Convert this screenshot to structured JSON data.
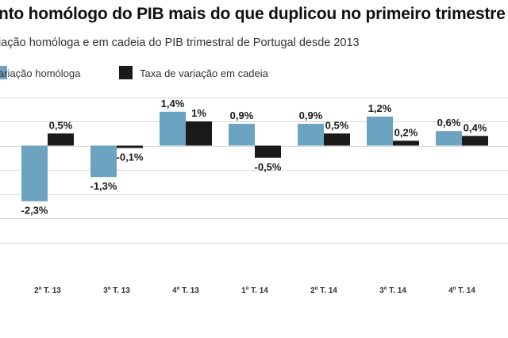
{
  "chart_data": {
    "type": "bar",
    "title": "nto homólogo do PIB mais do que duplicou no primeiro trimestre",
    "subtitle": "iação homóloga e em cadeia do PIB trimestral de Portugal desde 2013",
    "categories": [
      "2º T. 13",
      "3º T. 13",
      "4º T. 13",
      "1º T. 14",
      "2º T. 14",
      "3º T. 14",
      "4º T. 14"
    ],
    "series": [
      {
        "name": "ariação homóloga",
        "color": "#6ba3c0",
        "values": [
          -2.3,
          -1.3,
          1.4,
          0.9,
          0.9,
          1.2,
          0.6
        ],
        "labels": [
          "-2,3%",
          "-1,3%",
          "1,4%",
          "0,9%",
          "0,9%",
          "1,2%",
          "0,6%"
        ]
      },
      {
        "name": "Taxa de variação em cadeia",
        "color": "#1a1a1a",
        "values": [
          0.5,
          -0.1,
          1.0,
          -0.5,
          0.5,
          0.2,
          0.4
        ],
        "labels": [
          "0,5%",
          "-0,1%",
          "1%",
          "-0,5%",
          "0,5%",
          "0,2%",
          "0,4%"
        ]
      }
    ],
    "ylim": [
      -4.3,
      2.0
    ],
    "grid": true,
    "legend": "top-left"
  }
}
